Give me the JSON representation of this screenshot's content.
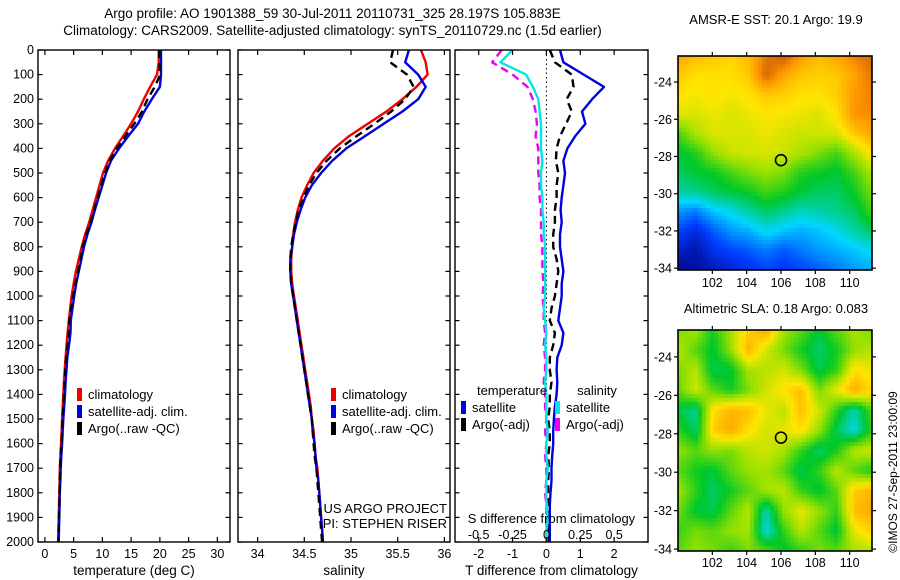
{
  "header": {
    "title_line1": "Argo profile: AO 1901388_59 30-Jul-2011 20110731_325 28.197S 105.883E",
    "title_line2": "Climatology: CARS2009. Satellite-adjusted climatology: synTS_20110729.nc (1.5d earlier)"
  },
  "credit": "©IMOS 27-Sep-2011 23:00:09",
  "depths": [
    0,
    50,
    100,
    150,
    200,
    250,
    300,
    350,
    400,
    450,
    500,
    550,
    600,
    650,
    700,
    750,
    800,
    850,
    900,
    950,
    1000,
    1050,
    1100,
    1150,
    1200,
    1250,
    1300,
    1350,
    1400,
    1450,
    1500,
    1550,
    1600,
    1650,
    1700,
    1750,
    1800,
    1850,
    1900,
    1950,
    2000
  ],
  "chart_data": [
    {
      "id": "temperature-profile",
      "type": "line",
      "xlabel": "temperature (deg C)",
      "ylabel": "",
      "xlim": [
        -1.2,
        32.2
      ],
      "ylim": [
        0,
        2000
      ],
      "x_ticks": [
        0,
        5,
        10,
        15,
        20,
        25,
        30
      ],
      "y_tick_step": 100,
      "grid": false,
      "series": [
        {
          "name": "climatology",
          "color": "#ee0000",
          "dash": "solid",
          "values": [
            19.8,
            19.8,
            19.5,
            18.3,
            17.2,
            16.2,
            15.0,
            13.6,
            12.2,
            11.0,
            10.1,
            9.5,
            8.9,
            8.3,
            7.7,
            7.0,
            6.4,
            5.9,
            5.4,
            5.0,
            4.65,
            4.4,
            4.15,
            3.95,
            3.75,
            3.6,
            3.45,
            3.3,
            3.2,
            3.1,
            3.0,
            2.9,
            2.8,
            2.7,
            2.6,
            2.55,
            2.5,
            2.45,
            2.4,
            2.35,
            2.3
          ]
        },
        {
          "name": "satellite-adj. clim.",
          "color": "#0000dd",
          "dash": "solid",
          "values": [
            20.2,
            20.2,
            20.2,
            20.0,
            18.6,
            17.3,
            16.2,
            14.5,
            12.9,
            11.5,
            10.65,
            10.0,
            9.35,
            8.7,
            8.1,
            7.4,
            6.8,
            6.35,
            5.9,
            5.45,
            5.1,
            4.8,
            4.5,
            4.45,
            4.2,
            3.9,
            3.75,
            3.6,
            3.5,
            3.35,
            3.2,
            3.1,
            3.0,
            2.85,
            2.75,
            2.7,
            2.6,
            2.55,
            2.5,
            2.45,
            2.4
          ]
        },
        {
          "name": "Argo(..raw -QC)",
          "color": "#000000",
          "dash": "dashed",
          "values": [
            19.9,
            19.9,
            20.05,
            19.1,
            17.85,
            16.9,
            15.55,
            14.0,
            12.5,
            11.3,
            10.45,
            9.8,
            9.2,
            8.55,
            7.95,
            7.2,
            6.6,
            6.2,
            5.75,
            5.3,
            4.9,
            4.55,
            4.25,
            4.2,
            3.95,
            3.7,
            3.55,
            3.45,
            3.3,
            3.2,
            3.05,
            3.0,
            2.9,
            2.75,
            2.68,
            2.6,
            2.55,
            2.53,
            2.45,
            2.4,
            2.35
          ]
        }
      ]
    },
    {
      "id": "salinity-profile",
      "type": "line",
      "xlabel": "salinity",
      "ylabel": "",
      "xlim": [
        33.79,
        36.06
      ],
      "ylim": [
        0,
        2000
      ],
      "x_ticks": [
        34,
        34.5,
        35,
        35.5,
        36
      ],
      "y_tick_step": 100,
      "grid": false,
      "annotations": {
        "line1": "US ARGO PROJECT",
        "line2": "PI: STEPHEN RISER"
      },
      "series": [
        {
          "name": "climatology",
          "color": "#ee0000",
          "dash": "solid",
          "values": [
            35.75,
            35.8,
            35.82,
            35.7,
            35.55,
            35.38,
            35.18,
            34.98,
            34.82,
            34.7,
            34.6,
            34.53,
            34.47,
            34.43,
            34.4,
            34.38,
            34.37,
            34.36,
            34.36,
            34.37,
            34.39,
            34.41,
            34.43,
            34.45,
            34.47,
            34.49,
            34.51,
            34.53,
            34.55,
            34.57,
            34.58,
            34.6,
            34.61,
            34.62,
            34.64,
            34.65,
            34.66,
            34.67,
            34.68,
            34.69,
            34.7
          ]
        },
        {
          "name": "satellite-adj. clim.",
          "color": "#0000dd",
          "dash": "solid",
          "values": [
            35.62,
            35.58,
            35.72,
            35.8,
            35.72,
            35.55,
            35.35,
            35.15,
            34.95,
            34.8,
            34.68,
            34.58,
            34.51,
            34.46,
            34.42,
            34.39,
            34.37,
            34.35,
            34.35,
            34.36,
            34.38,
            34.4,
            34.42,
            34.44,
            34.46,
            34.48,
            34.5,
            34.52,
            34.54,
            34.56,
            34.58,
            34.59,
            34.61,
            34.62,
            34.63,
            34.65,
            34.66,
            34.67,
            34.68,
            34.69,
            34.7
          ]
        },
        {
          "name": "Argo(..raw -QC)",
          "color": "#000000",
          "dash": "dashed",
          "values": [
            35.45,
            35.42,
            35.6,
            35.67,
            35.58,
            35.43,
            35.25,
            35.06,
            34.88,
            34.74,
            34.63,
            34.55,
            34.49,
            34.44,
            34.41,
            34.38,
            34.36,
            34.35,
            34.35,
            34.36,
            34.38,
            34.4,
            34.42,
            34.44,
            34.46,
            34.48,
            34.5,
            34.52,
            34.54,
            34.56,
            34.58,
            34.59,
            34.6,
            34.61,
            34.63,
            34.64,
            34.65,
            34.66,
            34.67,
            34.68,
            34.69
          ]
        }
      ]
    },
    {
      "id": "difference-profile",
      "type": "line",
      "xlabel": "T difference from climatology",
      "s_axis_label": "S difference from climatology",
      "ylabel": "",
      "xlim": [
        -2.7,
        3.0
      ],
      "ylim": [
        0,
        2000
      ],
      "x_ticks": [
        -2,
        -1,
        0,
        1,
        2
      ],
      "s_ticks": [
        -0.5,
        -0.25,
        0,
        0.25,
        0.5
      ],
      "s_scale": 4,
      "zero_line": true,
      "y_tick_step": 100,
      "draw_order": [
        3,
        1,
        2,
        0
      ],
      "legend": {
        "col1_header": "temperature",
        "col2_header": "salinity"
      },
      "series": [
        {
          "name": "satellite",
          "axis": "T",
          "color": "#0000dd",
          "dash": "solid",
          "scale": 1,
          "values": [
            0.4,
            0.5,
            1.1,
            1.7,
            1.35,
            1.05,
            1.15,
            0.85,
            0.62,
            0.5,
            0.55,
            0.5,
            0.45,
            0.42,
            0.45,
            0.4,
            0.4,
            0.45,
            0.5,
            0.45,
            0.45,
            0.4,
            0.35,
            0.5,
            0.45,
            0.32,
            0.3,
            0.32,
            0.3,
            0.25,
            0.22,
            0.2,
            0.2,
            0.17,
            0.15,
            0.15,
            0.12,
            0.1,
            0.1,
            0.1,
            0.1
          ]
        },
        {
          "name": "Argo(-adj)",
          "axis": "T",
          "color": "#000000",
          "dash": "dashed",
          "scale": 1,
          "values": [
            0.1,
            0.25,
            0.75,
            0.8,
            0.6,
            0.75,
            0.58,
            0.4,
            0.3,
            0.28,
            0.35,
            0.3,
            0.3,
            0.25,
            0.25,
            0.2,
            0.2,
            0.3,
            0.35,
            0.3,
            0.25,
            0.15,
            0.1,
            0.25,
            0.2,
            0.1,
            0.1,
            0.15,
            0.1,
            0.1,
            0.05,
            0.1,
            0.1,
            0.05,
            0.08,
            0.05,
            0.05,
            0.08,
            0.05,
            0.05,
            0.05
          ]
        },
        {
          "name": "satellite",
          "axis": "S",
          "color": "#00e6e6",
          "dash": "solid",
          "scale": 4,
          "values": [
            -0.25,
            -0.34,
            -0.15,
            -0.1,
            -0.06,
            -0.05,
            -0.04,
            -0.04,
            -0.04,
            -0.03,
            -0.04,
            -0.04,
            -0.03,
            -0.03,
            -0.02,
            -0.02,
            -0.01,
            -0.01,
            -0.01,
            -0.01,
            -0.01,
            -0.02,
            -0.01,
            0.0,
            -0.01,
            0.0,
            0.0,
            -0.01,
            0.0,
            0.0,
            0.0,
            0.01,
            0.0,
            0.0,
            0.01,
            0.0,
            0.0,
            0.0,
            0.01,
            0.0,
            0.0
          ]
        },
        {
          "name": "Argo(-adj)",
          "axis": "S",
          "color": "#ee00ee",
          "dash": "dashed",
          "scale": 4,
          "values": [
            -0.33,
            -0.4,
            -0.25,
            -0.14,
            -0.1,
            -0.08,
            -0.07,
            -0.08,
            -0.06,
            -0.06,
            -0.06,
            -0.05,
            -0.05,
            -0.04,
            -0.04,
            -0.04,
            -0.03,
            -0.03,
            -0.03,
            -0.02,
            -0.03,
            -0.02,
            -0.02,
            -0.01,
            -0.02,
            -0.01,
            -0.01,
            -0.02,
            -0.01,
            -0.01,
            0.0,
            -0.01,
            0.0,
            -0.01,
            0.0,
            0.0,
            -0.01,
            0.0,
            0.0,
            0.0,
            0.0
          ]
        }
      ]
    },
    {
      "id": "sst-map",
      "type": "heatmap",
      "title": "AMSR-E SST: 20.1 Argo: 19.9",
      "x_ticks": [
        102,
        104,
        106,
        108,
        110
      ],
      "y_ticks": [
        -24,
        -26,
        -28,
        -30,
        -32,
        -34
      ],
      "lon_range": [
        100.0,
        111.3
      ],
      "lat_range": [
        -22.6,
        -34.1
      ],
      "vmin": 13.6,
      "vmax": 23.2,
      "marker": {
        "lon": 106,
        "lat": -28.2
      },
      "grid": [
        [
          21.6,
          21.2,
          21.0,
          20.8,
          21.2,
          22.4,
          22.8,
          21.8,
          21.2,
          21.6,
          22.2,
          22.6
        ],
        [
          21.0,
          20.6,
          20.6,
          20.6,
          21.0,
          22.6,
          21.6,
          21.0,
          20.9,
          21.0,
          21.6,
          22.4
        ],
        [
          20.6,
          20.4,
          20.6,
          20.4,
          20.6,
          21.0,
          20.9,
          20.6,
          20.6,
          20.9,
          21.8,
          22.2
        ],
        [
          20.2,
          20.1,
          20.3,
          20.1,
          20.3,
          20.5,
          20.4,
          20.3,
          20.1,
          20.6,
          21.9,
          22.0
        ],
        [
          18.6,
          19.6,
          20.1,
          20.1,
          20.1,
          20.3,
          20.1,
          19.9,
          20.0,
          20.1,
          21.0,
          21.6
        ],
        [
          17.9,
          18.3,
          19.3,
          19.9,
          20.0,
          20.1,
          19.9,
          19.6,
          19.1,
          18.6,
          19.6,
          20.6
        ],
        [
          17.6,
          17.9,
          18.1,
          18.6,
          19.1,
          19.4,
          19.1,
          18.3,
          18.1,
          17.9,
          18.6,
          19.6
        ],
        [
          17.1,
          17.3,
          17.6,
          17.9,
          18.1,
          18.6,
          18.3,
          17.9,
          17.6,
          17.6,
          18.1,
          19.1
        ],
        [
          15.9,
          15.6,
          16.3,
          16.6,
          17.1,
          17.6,
          17.3,
          16.9,
          17.1,
          17.3,
          17.6,
          18.6
        ],
        [
          15.1,
          14.7,
          15.3,
          15.9,
          16.1,
          16.6,
          16.3,
          16.1,
          16.3,
          16.6,
          17.1,
          17.6
        ],
        [
          14.4,
          14.1,
          14.8,
          15.1,
          15.3,
          15.6,
          15.3,
          15.6,
          15.9,
          16.1,
          16.3,
          16.6
        ],
        [
          13.9,
          14.0,
          14.2,
          14.5,
          14.8,
          15.1,
          14.9,
          15.1,
          15.3,
          15.6,
          15.9,
          16.1
        ]
      ]
    },
    {
      "id": "sla-map",
      "type": "heatmap",
      "title": "Altimetric SLA: 0.18 Argo: 0.083",
      "x_ticks": [
        102,
        104,
        106,
        108,
        110
      ],
      "y_ticks": [
        -24,
        -26,
        -28,
        -30,
        -32,
        -34
      ],
      "lon_range": [
        100.0,
        111.3
      ],
      "lat_range": [
        -22.6,
        -34.1
      ],
      "vmin": -0.55,
      "vmax": 0.5,
      "marker": {
        "lon": 106,
        "lat": -28.2
      },
      "grid": [
        [
          0.05,
          0.1,
          -0.05,
          0.1,
          0.25,
          0.32,
          0.1,
          0.02,
          -0.08,
          0.02,
          0.1,
          0.05
        ],
        [
          0.12,
          0.02,
          -0.08,
          0.08,
          0.3,
          0.15,
          0.05,
          -0.05,
          -0.12,
          -0.05,
          0.08,
          0.12
        ],
        [
          0.05,
          0.12,
          -0.1,
          -0.08,
          0.1,
          0.12,
          0.15,
          0.05,
          -0.1,
          -0.02,
          0.22,
          0.18
        ],
        [
          0.02,
          0.15,
          0.02,
          -0.05,
          0.05,
          0.15,
          0.22,
          0.28,
          0.05,
          0.18,
          0.32,
          0.22
        ],
        [
          -0.08,
          -0.15,
          0.22,
          0.3,
          0.28,
          0.18,
          0.12,
          0.28,
          0.15,
          -0.02,
          -0.18,
          0.02
        ],
        [
          -0.02,
          -0.12,
          0.25,
          0.32,
          0.22,
          0.15,
          0.18,
          0.22,
          0.08,
          -0.1,
          -0.22,
          -0.02
        ],
        [
          0.08,
          0.02,
          0.08,
          0.05,
          0.12,
          0.15,
          0.1,
          -0.02,
          -0.12,
          -0.05,
          0.12,
          0.15
        ],
        [
          0.02,
          -0.05,
          -0.08,
          0.02,
          0.08,
          0.1,
          0.02,
          -0.1,
          -0.02,
          0.12,
          0.02,
          -0.05
        ],
        [
          0.1,
          -0.02,
          -0.12,
          -0.05,
          0.02,
          0.1,
          0.12,
          -0.02,
          -0.08,
          0.02,
          0.25,
          0.3
        ],
        [
          0.05,
          -0.08,
          -0.1,
          0.02,
          0.12,
          -0.18,
          0.08,
          0.18,
          0.08,
          -0.02,
          0.28,
          0.32
        ],
        [
          -0.02,
          0.05,
          0.02,
          0.08,
          0.1,
          -0.22,
          -0.02,
          0.12,
          0.02,
          -0.08,
          0.18,
          0.25
        ],
        [
          0.02,
          0.08,
          0.05,
          -0.02,
          0.05,
          0.02,
          -0.08,
          -0.02,
          0.05,
          0.02,
          0.1,
          0.12
        ]
      ]
    }
  ]
}
